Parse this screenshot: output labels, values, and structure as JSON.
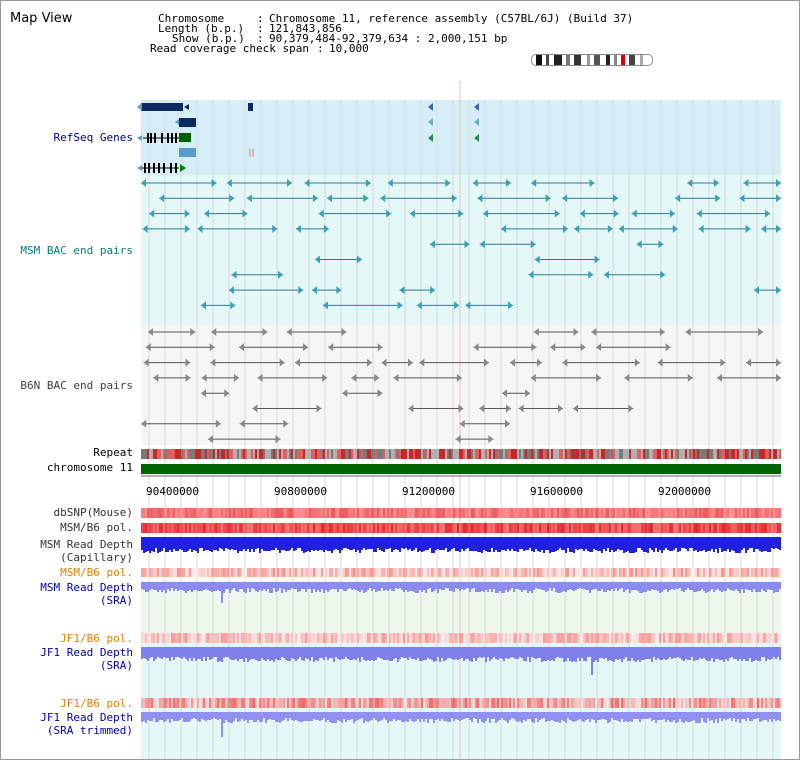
{
  "title": "Map View",
  "header": {
    "chromosome_label": "Chromosome",
    "chromosome_value": "Chromosome 11, reference assembly (C57BL/6J) (Build 37)",
    "length_label": "Length (b.p.)",
    "length_value": "121,843,856",
    "show_label": "Show (b.p.)",
    "show_value": "90,379,484-92,379,634 : 2,000,151 bp",
    "span_label": "Read coverage check span",
    "span_value": "10,000"
  },
  "axis_ticks": [
    "90400000",
    "90800000",
    "91200000",
    "91600000",
    "92000000"
  ],
  "tracks": {
    "refseq": "RefSeq Genes",
    "msm_bac": "MSM BAC end pairs",
    "b6n_bac": "B6N BAC end pairs",
    "repeat": "Repeat",
    "chromosome": "chromosome 11",
    "dbsnp": "dbSNP(Mouse)",
    "msm_b6_pol": "MSM/B6 pol.",
    "msm_read_depth_cap_1": "MSM Read Depth",
    "msm_read_depth_cap_2": "(Capillary)",
    "msm_b6_pol_2": "MSM/B6 pol.",
    "msm_read_depth_sra_1": "MSM Read Depth",
    "msm_read_depth_sra_2": "(SRA)",
    "jf1_b6_pol": "JF1/B6 pol.",
    "jf1_read_depth_sra_1": "JF1 Read Depth",
    "jf1_read_depth_sra_2": "(SRA)",
    "jf1_b6_pol_2": "JF1/B6 pol.",
    "jf1_read_depth_trim_1": "JF1 Read Depth",
    "jf1_read_depth_trim_2": "(SRA trimmed)"
  },
  "colors": {
    "refseq_label": "#00008b",
    "msm_label": "#008080",
    "b6n_label": "#404040",
    "pol_orange": "#e08000",
    "depth_blue": "#0000b0",
    "chromosome_green": "#006400",
    "refseq_bg": "#d6eef8",
    "msm_bg": "#e4f8f8",
    "b6n_bg": "#f4f4f4"
  }
}
